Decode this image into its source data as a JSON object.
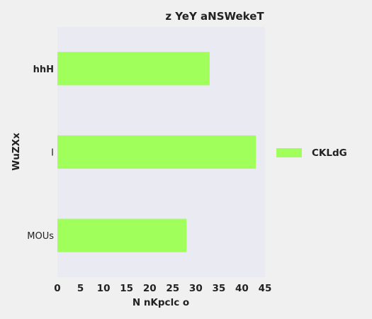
{
  "chart_data": {
    "type": "bar",
    "orientation": "horizontal",
    "title": "z YeY aNSWekeT",
    "xlabel": "N nKpclc o",
    "ylabel": "WuZXx",
    "categories": [
      "hhH",
      "I",
      "MOUs"
    ],
    "series": [
      {
        "name": "CKLdG",
        "values": [
          33,
          43,
          28
        ]
      }
    ],
    "xlim": [
      0,
      45
    ],
    "xticks": [
      "0",
      "5",
      "10",
      "15",
      "20",
      "25",
      "30",
      "35",
      "40",
      "45"
    ],
    "grid": false,
    "legend_position": "right",
    "colors": {
      "background": "#f0f0f0",
      "plot_area": "#eaeaf2",
      "bar": "#a0ff5a"
    }
  }
}
